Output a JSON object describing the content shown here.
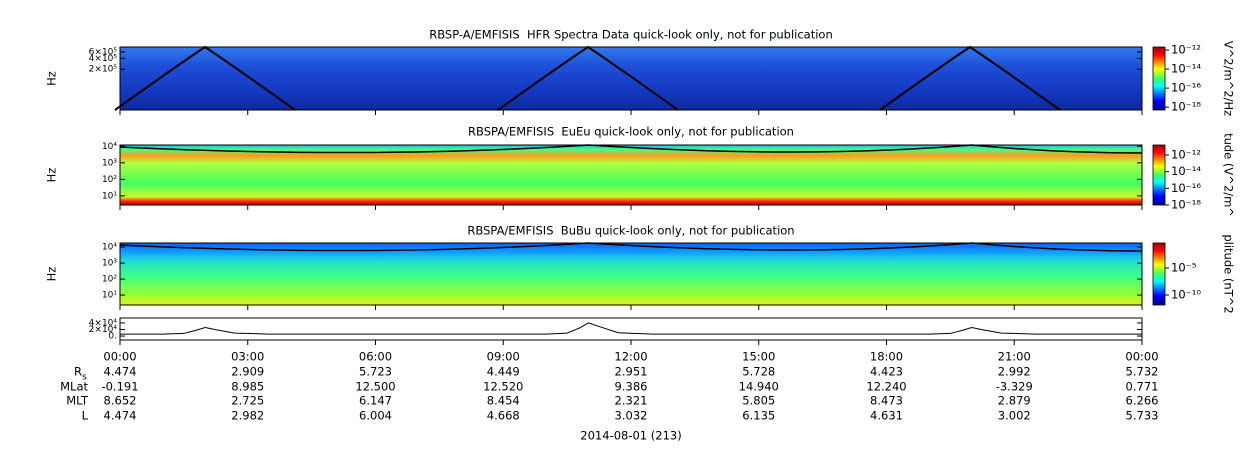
{
  "chart_data": [
    {
      "type": "spectrogram",
      "title": "RBSP-A/EMFISIS  HFR Spectra Data quick-look only, not for publication",
      "ylabel": "Hz",
      "yscale": "log",
      "ylim": [
        15000,
        820000
      ],
      "yticks": [
        {
          "value": 200000,
          "label": "2×10⁵"
        },
        {
          "value": 400000,
          "label": "4×10⁵"
        },
        {
          "value": 600000,
          "label": "6×10⁵"
        }
      ],
      "colorbar": {
        "label": "V^2/m^2/Hz",
        "scale": "log",
        "lim": [
          5e-19,
          2.1e-12
        ],
        "ticks": [
          {
            "value": 1e-12,
            "label": "10⁻¹²"
          },
          {
            "value": 1e-14,
            "label": "10⁻¹⁴"
          },
          {
            "value": 1e-16,
            "label": "10⁻¹⁶"
          },
          {
            "value": 1e-18,
            "label": "10⁻¹⁸"
          }
        ]
      }
    },
    {
      "type": "spectrogram",
      "title": "RBSPA/EMFISIS  EuEu quick-look only, not for publication",
      "ylabel": "Hz",
      "yscale": "log",
      "ylim": [
        2.8,
        12000
      ],
      "yticks": [
        {
          "value": 10,
          "label": "10¹"
        },
        {
          "value": 100,
          "label": "10²"
        },
        {
          "value": 1000,
          "label": "10³"
        },
        {
          "value": 10000,
          "label": "10⁴"
        }
      ],
      "colorbar": {
        "label": "tude (V^2/m^",
        "scale": "log",
        "lim": [
          1e-18,
          1.6e-11
        ],
        "ticks": [
          {
            "value": 1e-12,
            "label": "10⁻¹²"
          },
          {
            "value": 1e-14,
            "label": "10⁻¹⁴"
          },
          {
            "value": 1e-16,
            "label": "10⁻¹⁶"
          },
          {
            "value": 1e-18,
            "label": "10⁻¹⁸"
          }
        ]
      }
    },
    {
      "type": "spectrogram",
      "title": "RBSPA/EMFISIS  BuBu quick-look only, not for publication",
      "ylabel": "Hz",
      "yscale": "log",
      "ylim": [
        2.4,
        18000
      ],
      "yticks": [
        {
          "value": 10,
          "label": "10¹"
        },
        {
          "value": 100,
          "label": "10²"
        },
        {
          "value": 1000,
          "label": "10³"
        },
        {
          "value": 10000,
          "label": "10⁴"
        }
      ],
      "colorbar": {
        "label": "plitude (nT^2",
        "scale": "log",
        "lim": [
          1.4e-12,
          0.43
        ],
        "ticks": [
          {
            "value": 1e-05,
            "label": "10⁻⁵"
          },
          {
            "value": 1e-10,
            "label": "10⁻¹⁰"
          }
        ]
      }
    },
    {
      "type": "line",
      "color": "#000000",
      "ylim": [
        -12000,
        55000
      ],
      "yticks": [
        {
          "value": 0,
          "label": "0."
        },
        {
          "value": 20000,
          "label": "2×10⁴"
        },
        {
          "value": 40000,
          "label": "4×10⁴"
        }
      ],
      "xlim": [
        0,
        24
      ],
      "xticks": [
        {
          "value": 0,
          "label": "00:00"
        },
        {
          "value": 3,
          "label": "03:00"
        },
        {
          "value": 6,
          "label": "06:00"
        },
        {
          "value": 9,
          "label": "09:00"
        },
        {
          "value": 12,
          "label": "12:00"
        },
        {
          "value": 15,
          "label": "15:00"
        },
        {
          "value": 18,
          "label": "18:00"
        },
        {
          "value": 21,
          "label": "21:00"
        },
        {
          "value": 24,
          "label": "00:00"
        }
      ],
      "x": [
        0,
        1,
        1.5,
        1.8,
        2,
        2.3,
        2.7,
        3.5,
        6,
        9,
        10,
        10.5,
        10.8,
        11,
        11.3,
        11.7,
        12.5,
        15,
        18,
        19,
        19.5,
        19.8,
        20,
        20.3,
        20.7,
        21.5,
        24
      ],
      "values": [
        6000,
        6000,
        8000,
        18000,
        26000,
        18000,
        9000,
        6000,
        6000,
        6000,
        6000,
        9000,
        25000,
        40000,
        27000,
        10000,
        6000,
        6000,
        6000,
        6000,
        8000,
        18000,
        26000,
        18000,
        9000,
        6000,
        6000
      ]
    }
  ],
  "ephemeris": {
    "xlabel": "2014-08-01 (213)",
    "rows": [
      {
        "label": "R",
        "subscript": "s",
        "values": [
          "4.474",
          "2.909",
          "5.723",
          "4.449",
          "2.951",
          "5.728",
          "4.423",
          "2.992",
          "5.732"
        ]
      },
      {
        "label": "MLat",
        "values": [
          "-0.191",
          "8.985",
          "12.500",
          "12.520",
          "9.386",
          "14.940",
          "12.240",
          "-3.329",
          "0.771"
        ]
      },
      {
        "label": "MLT",
        "values": [
          "8.652",
          "2.725",
          "6.147",
          "8.454",
          "2.321",
          "5.805",
          "8.473",
          "2.879",
          "6.266"
        ]
      },
      {
        "label": "L",
        "values": [
          "4.474",
          "2.982",
          "6.004",
          "4.668",
          "3.032",
          "6.135",
          "4.631",
          "3.002",
          "5.733"
        ]
      }
    ]
  }
}
